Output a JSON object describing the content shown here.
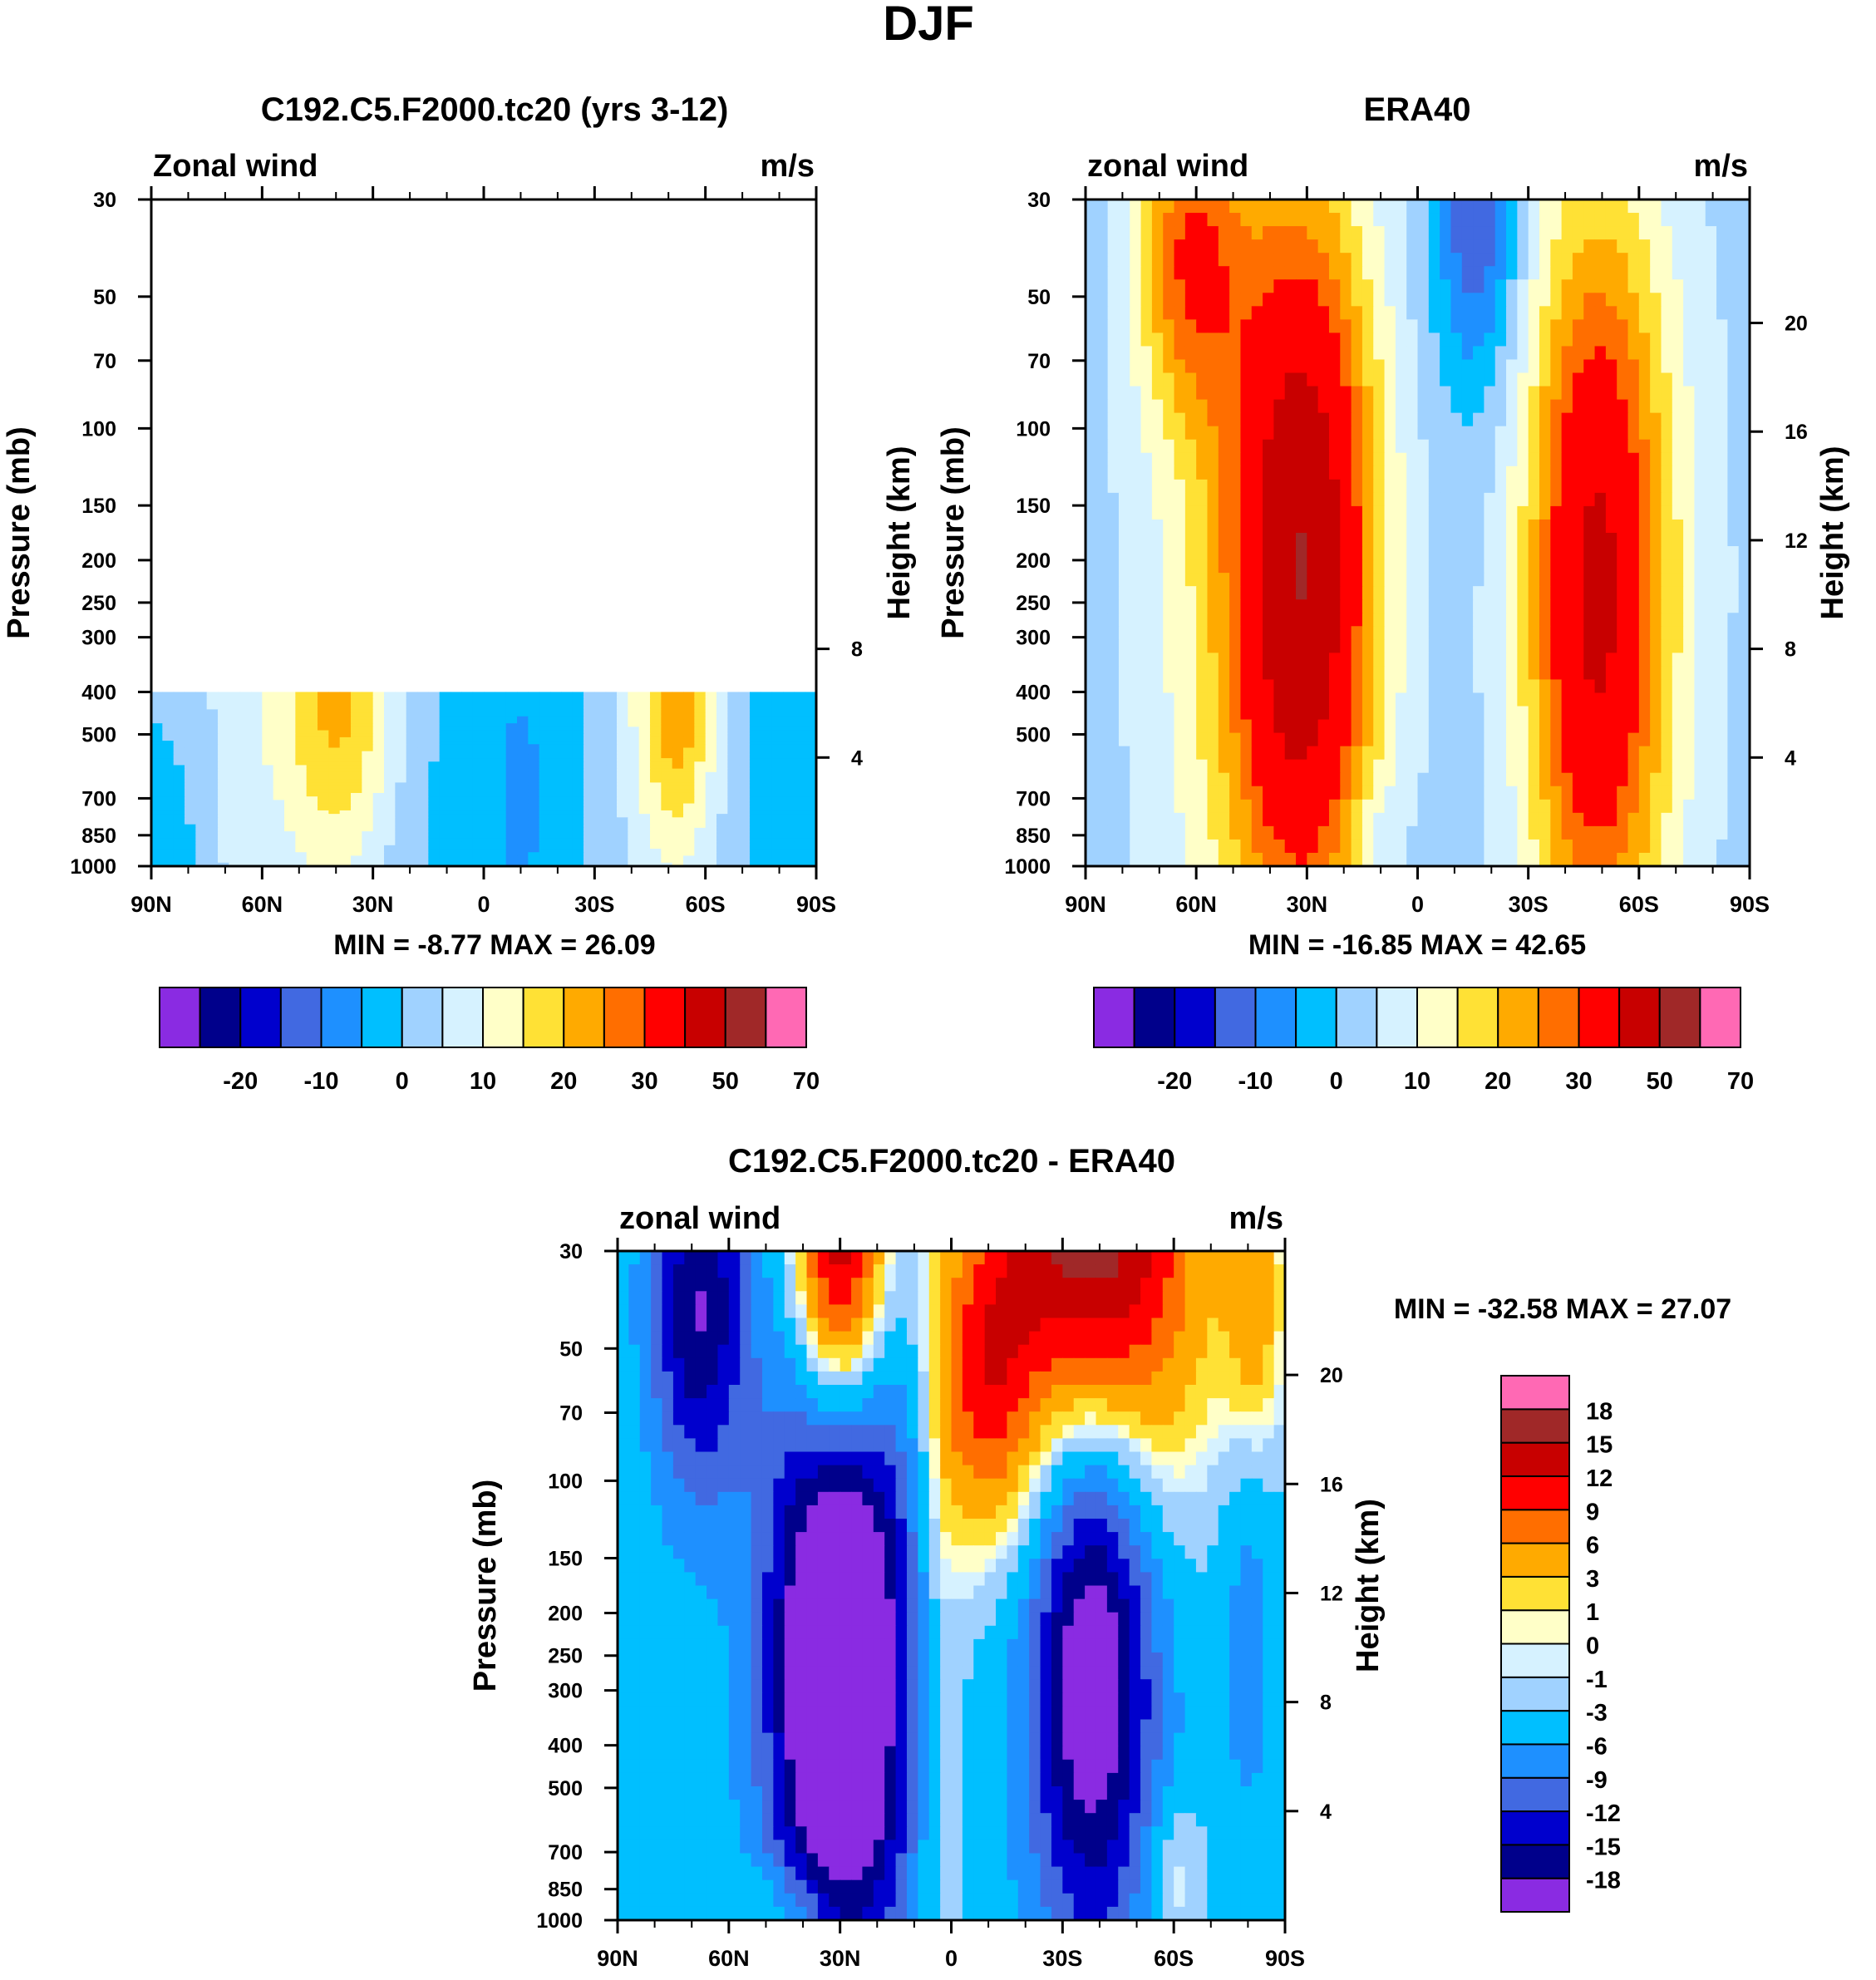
{
  "figure_title": "DJF",
  "chart_data": [
    {
      "type": "heatmap",
      "id": "model",
      "title": "C192.C5.F2000.tc20 (yrs 3-12)",
      "left_label": "Zonal wind",
      "right_label": "m/s",
      "ylabel": "Pressure (mb)",
      "y2label": "Height (km)",
      "x_ticks": [
        "90N",
        "60N",
        "30N",
        "0",
        "30S",
        "60S",
        "90S"
      ],
      "x_range": [
        90,
        -90
      ],
      "y_ticks": [
        30,
        50,
        70,
        100,
        150,
        200,
        250,
        300,
        400,
        500,
        700,
        850,
        1000
      ],
      "y_range_mb": [
        1000,
        30
      ],
      "height_ticks_km": [
        4,
        8
      ],
      "stats": "MIN =  -8.77  MAX =  26.09",
      "data_top_mb": 400,
      "background": 0,
      "blobs": [
        {
          "lat": 68,
          "p": 700,
          "sl": 6,
          "sp": 700,
          "a": 4
        },
        {
          "lat": 45,
          "p": 420,
          "sl": 18,
          "sp": 700,
          "a": 12
        },
        {
          "lat": 38,
          "p": 400,
          "sl": 10,
          "sp": 450,
          "a": 12
        },
        {
          "lat": -50,
          "p": 420,
          "sl": 11,
          "sp": 600,
          "a": 14
        },
        {
          "lat": -53,
          "p": 400,
          "sl": 6,
          "sp": 350,
          "a": 11
        },
        {
          "lat": -10,
          "p": 700,
          "sl": 4,
          "sp": 250,
          "a": -6
        },
        {
          "lat": 10,
          "p": 600,
          "sl": 30,
          "sp": 800,
          "a": -3
        },
        {
          "lat": 80,
          "p": 850,
          "sl": 10,
          "sp": 300,
          "a": -2
        },
        {
          "lat": -78,
          "p": 650,
          "sl": 6,
          "sp": 300,
          "a": -4
        }
      ],
      "colorbar": {
        "orientation": "horizontal",
        "colors": [
          "#8a2be2",
          "#00008b",
          "#0000cd",
          "#4169e1",
          "#1e90ff",
          "#00bfff",
          "#a0d2ff",
          "#d6f2ff",
          "#ffffc8",
          "#ffe135",
          "#ffaa00",
          "#ff6e00",
          "#ff0000",
          "#c80000",
          "#a02828",
          "#ff69b4"
        ],
        "levels": [
          -25,
          -20,
          -15,
          -10,
          -5,
          0,
          5,
          10,
          15,
          20,
          25,
          30,
          40,
          50,
          60
        ],
        "labels": [
          "-20",
          "-10",
          "0",
          "10",
          "20",
          "30",
          "50",
          "70"
        ]
      }
    },
    {
      "type": "heatmap",
      "id": "obs",
      "title": "ERA40",
      "left_label": "zonal wind",
      "right_label": "m/s",
      "ylabel": "Pressure (mb)",
      "y2label": "Height (km)",
      "x_ticks": [
        "90N",
        "60N",
        "30N",
        "0",
        "30S",
        "60S",
        "90S"
      ],
      "x_range": [
        90,
        -90
      ],
      "y_ticks": [
        30,
        50,
        70,
        100,
        150,
        200,
        250,
        300,
        400,
        500,
        700,
        850,
        1000
      ],
      "y_range_mb": [
        1000,
        30
      ],
      "height_ticks_km": [
        4,
        8,
        12,
        16,
        20
      ],
      "stats": "MIN = -16.85  MAX =  42.65",
      "background": 2,
      "blobs": [
        {
          "lat": 30,
          "p": 210,
          "sl": 14,
          "sp": 1.4,
          "a": 40
        },
        {
          "lat": 48,
          "p": 200,
          "sl": 20,
          "sp": 1.9,
          "a": 12
        },
        {
          "lat": 62,
          "p": 40,
          "sl": 10,
          "sp": 0.6,
          "a": 22
        },
        {
          "lat": -48,
          "p": 240,
          "sl": 13,
          "sp": 1.4,
          "a": 33
        },
        {
          "lat": -55,
          "p": 220,
          "sl": 20,
          "sp": 1.9,
          "a": 8
        },
        {
          "lat": -16,
          "p": 30,
          "sl": 8,
          "sp": 0.7,
          "a": -18
        },
        {
          "lat": 12,
          "p": 850,
          "sl": 6,
          "sp": 0.2,
          "a": -4
        },
        {
          "lat": 88,
          "p": 900,
          "sl": 5,
          "sp": 0.3,
          "a": -2
        }
      ],
      "colorbar": {
        "orientation": "horizontal",
        "colors": [
          "#8a2be2",
          "#00008b",
          "#0000cd",
          "#4169e1",
          "#1e90ff",
          "#00bfff",
          "#a0d2ff",
          "#d6f2ff",
          "#ffffc8",
          "#ffe135",
          "#ffaa00",
          "#ff6e00",
          "#ff0000",
          "#c80000",
          "#a02828",
          "#ff69b4"
        ],
        "levels": [
          -25,
          -20,
          -15,
          -10,
          -5,
          0,
          5,
          10,
          15,
          20,
          25,
          30,
          40,
          50,
          60
        ],
        "labels": [
          "-20",
          "-10",
          "0",
          "10",
          "20",
          "30",
          "50",
          "70"
        ]
      }
    },
    {
      "type": "heatmap",
      "id": "diff",
      "title": "C192.C5.F2000.tc20 - ERA40",
      "left_label": "zonal wind",
      "right_label": "m/s",
      "ylabel": "Pressure (mb)",
      "y2label": "Height (km)",
      "x_ticks": [
        "90N",
        "60N",
        "30N",
        "0",
        "30S",
        "60S",
        "90S"
      ],
      "x_range": [
        90,
        -90
      ],
      "y_ticks": [
        30,
        50,
        70,
        100,
        150,
        200,
        250,
        300,
        400,
        500,
        700,
        850,
        1000
      ],
      "y_range_mb": [
        1000,
        30
      ],
      "height_ticks_km": [
        4,
        8,
        12,
        16,
        20
      ],
      "stats": "MIN = -32.58  MAX =  27.07",
      "background": -4,
      "blobs": [
        {
          "lat": 30,
          "p": 250,
          "sl": 13,
          "sp": 1.3,
          "a": -26
        },
        {
          "lat": -38,
          "p": 230,
          "sl": 12,
          "sp": 1.1,
          "a": -20
        },
        {
          "lat": 68,
          "p": 40,
          "sl": 9,
          "sp": 0.7,
          "a": -14
        },
        {
          "lat": 30,
          "p": 30,
          "sl": 9,
          "sp": 0.8,
          "a": 24
        },
        {
          "lat": -38,
          "p": 30,
          "sl": 20,
          "sp": 1.0,
          "a": 24
        },
        {
          "lat": -8,
          "p": 60,
          "sl": 9,
          "sp": 0.6,
          "a": 10
        },
        {
          "lat": 3,
          "p": 300,
          "sl": 5,
          "sp": 1.5,
          "a": 4
        },
        {
          "lat": -60,
          "p": 800,
          "sl": 6,
          "sp": 0.3,
          "a": 5
        },
        {
          "lat": 40,
          "p": 950,
          "sl": 12,
          "sp": 0.2,
          "a": 6
        },
        {
          "lat": -82,
          "p": 40,
          "sl": 6,
          "sp": 0.6,
          "a": 8
        },
        {
          "lat": -80,
          "p": 200,
          "sl": 5,
          "sp": 0.8,
          "a": -4
        }
      ],
      "colorbar": {
        "orientation": "vertical",
        "colors": [
          "#8a2be2",
          "#00008b",
          "#0000cd",
          "#4169e1",
          "#1e90ff",
          "#00bfff",
          "#a0d2ff",
          "#d6f2ff",
          "#ffffc8",
          "#ffe135",
          "#ffaa00",
          "#ff6e00",
          "#ff0000",
          "#c80000",
          "#a02828",
          "#ff69b4"
        ],
        "levels": [
          -18,
          -15,
          -12,
          -9,
          -6,
          -3,
          -1,
          0,
          1,
          3,
          6,
          9,
          12,
          15,
          18
        ],
        "labels": [
          "-18",
          "-15",
          "-12",
          "-9",
          "-6",
          "-3",
          "-1",
          "0",
          "1",
          "3",
          "6",
          "9",
          "12",
          "15",
          "18"
        ]
      }
    }
  ]
}
